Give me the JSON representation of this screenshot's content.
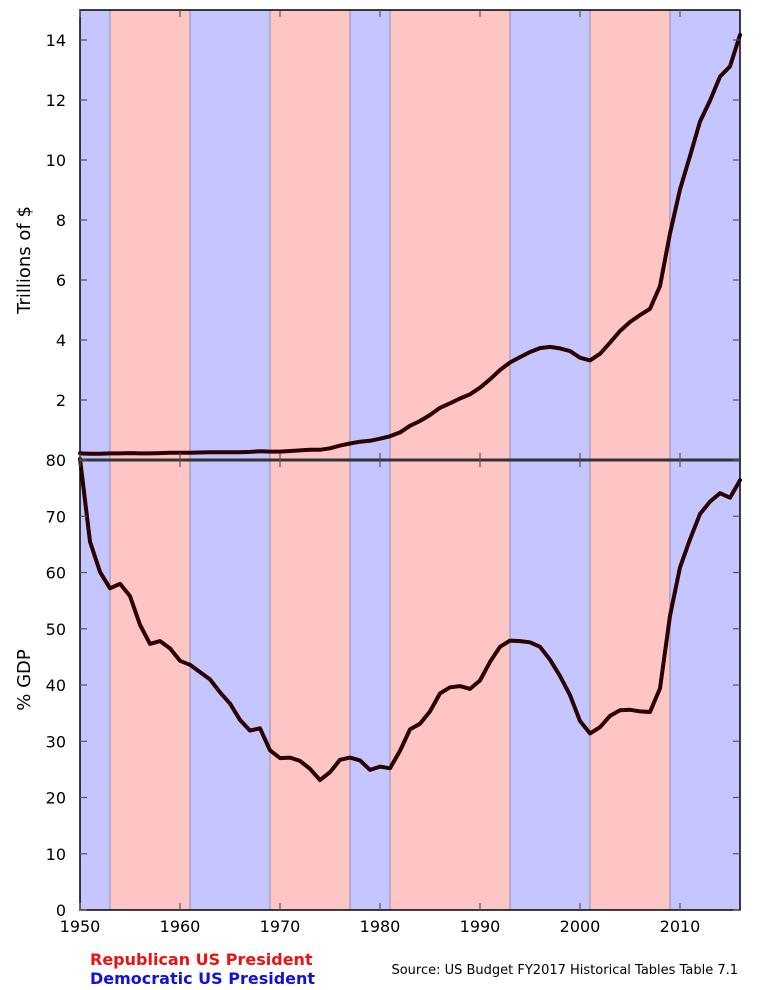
{
  "chart_data": [
    {
      "type": "line",
      "panel": "top",
      "title": "",
      "xlabel": "",
      "ylabel": "Trillions of $",
      "xlim": [
        1950,
        2016
      ],
      "ylim": [
        0,
        15
      ],
      "yticks": [
        2,
        4,
        6,
        8,
        10,
        12,
        14
      ],
      "grid": false,
      "series": [
        {
          "x": [
            1950,
            1951,
            1952,
            1953,
            1954,
            1955,
            1956,
            1957,
            1958,
            1959,
            1960,
            1961,
            1962,
            1963,
            1964,
            1965,
            1966,
            1967,
            1968,
            1969,
            1970,
            1971,
            1972,
            1973,
            1974,
            1975,
            1976,
            1977,
            1978,
            1979,
            1980,
            1981,
            1982,
            1983,
            1984,
            1985,
            1986,
            1987,
            1988,
            1989,
            1990,
            1991,
            1992,
            1993,
            1994,
            1995,
            1996,
            1997,
            1998,
            1999,
            2000,
            2001,
            2002,
            2003,
            2004,
            2005,
            2006,
            2007,
            2008,
            2009,
            2010,
            2011,
            2012,
            2013,
            2014,
            2015,
            2016
          ],
          "y": [
            0.22,
            0.21,
            0.21,
            0.22,
            0.22,
            0.23,
            0.22,
            0.22,
            0.23,
            0.24,
            0.24,
            0.24,
            0.25,
            0.26,
            0.26,
            0.26,
            0.26,
            0.27,
            0.29,
            0.28,
            0.28,
            0.3,
            0.32,
            0.34,
            0.34,
            0.39,
            0.48,
            0.55,
            0.61,
            0.64,
            0.71,
            0.79,
            0.92,
            1.14,
            1.3,
            1.5,
            1.74,
            1.89,
            2.05,
            2.19,
            2.41,
            2.69,
            3.0,
            3.25,
            3.43,
            3.6,
            3.73,
            3.77,
            3.72,
            3.63,
            3.41,
            3.32,
            3.54,
            3.91,
            4.3,
            4.6,
            4.83,
            5.04,
            5.8,
            7.55,
            9.02,
            10.13,
            11.28,
            11.98,
            12.78,
            13.12,
            14.17
          ]
        }
      ]
    },
    {
      "type": "line",
      "panel": "bottom",
      "title": "",
      "xlabel": "",
      "ylabel": "% GDP",
      "xlim": [
        1950,
        2016
      ],
      "ylim": [
        0,
        80
      ],
      "yticks": [
        0,
        10,
        20,
        30,
        40,
        50,
        60,
        70,
        80
      ],
      "xticks": [
        1950,
        1960,
        1970,
        1980,
        1990,
        2000,
        2010
      ],
      "grid": false,
      "series": [
        {
          "x": [
            1950,
            1951,
            1952,
            1953,
            1954,
            1955,
            1956,
            1957,
            1958,
            1959,
            1960,
            1961,
            1962,
            1963,
            1964,
            1965,
            1966,
            1967,
            1968,
            1969,
            1970,
            1971,
            1972,
            1973,
            1974,
            1975,
            1976,
            1977,
            1978,
            1979,
            1980,
            1981,
            1982,
            1983,
            1984,
            1985,
            1986,
            1987,
            1988,
            1989,
            1990,
            1991,
            1992,
            1993,
            1994,
            1995,
            1996,
            1997,
            1998,
            1999,
            2000,
            2001,
            2002,
            2003,
            2004,
            2005,
            2006,
            2007,
            2008,
            2009,
            2010,
            2011,
            2012,
            2013,
            2014,
            2015,
            2016
          ],
          "y": [
            80.2,
            65.5,
            60.1,
            57.2,
            58.0,
            55.8,
            50.7,
            47.3,
            47.8,
            46.5,
            44.3,
            43.6,
            42.3,
            41.0,
            38.7,
            36.7,
            33.8,
            31.9,
            32.3,
            28.4,
            27.0,
            27.1,
            26.5,
            25.1,
            23.1,
            24.5,
            26.7,
            27.1,
            26.6,
            24.9,
            25.5,
            25.2,
            28.3,
            32.1,
            33.1,
            35.3,
            38.5,
            39.6,
            39.8,
            39.3,
            40.8,
            44.1,
            46.8,
            47.9,
            47.8,
            47.6,
            46.8,
            44.5,
            41.6,
            38.2,
            33.6,
            31.4,
            32.5,
            34.5,
            35.5,
            35.6,
            35.3,
            35.2,
            39.4,
            52.3,
            60.9,
            65.9,
            70.4,
            72.6,
            74.1,
            73.3,
            76.4
          ]
        }
      ]
    }
  ],
  "presidential_terms": [
    {
      "start": 1950,
      "end": 1953,
      "party": "democratic"
    },
    {
      "start": 1953,
      "end": 1961,
      "party": "republican"
    },
    {
      "start": 1961,
      "end": 1969,
      "party": "democratic"
    },
    {
      "start": 1969,
      "end": 1977,
      "party": "republican"
    },
    {
      "start": 1977,
      "end": 1981,
      "party": "democratic"
    },
    {
      "start": 1981,
      "end": 1993,
      "party": "republican"
    },
    {
      "start": 1993,
      "end": 2001,
      "party": "democratic"
    },
    {
      "start": 2001,
      "end": 2009,
      "party": "republican"
    },
    {
      "start": 2009,
      "end": 2016,
      "party": "democratic"
    }
  ],
  "colors": {
    "republican_band": "#ffc5c5",
    "democratic_band": "#c5c5ff",
    "term_divider": "#9999bb",
    "line": "#2a0000",
    "republican_text": "#ee1111",
    "democratic_text": "#1111dd"
  },
  "legend": {
    "republican": "Republican US President",
    "democratic": "Democratic US President"
  },
  "source": "Source: US Budget FY2017 Historical Tables Table 7.1"
}
